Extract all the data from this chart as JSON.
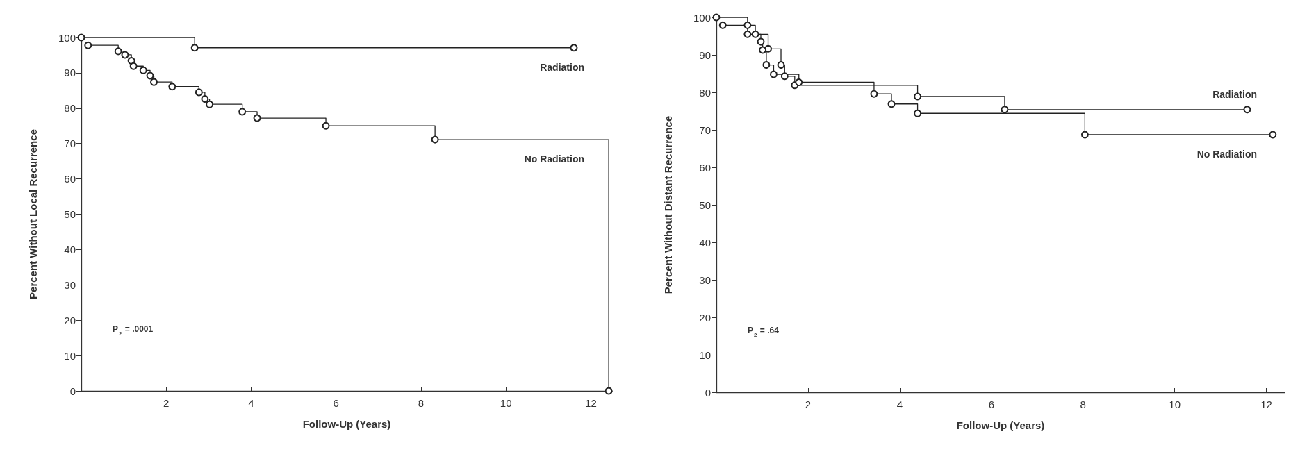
{
  "chart_data": [
    {
      "type": "step",
      "xlabel": "Follow-Up (Years)",
      "ylabel": "Percent Without Local Recurrence",
      "xlim": [
        0,
        12.5
      ],
      "xticks": [
        2,
        4,
        6,
        8,
        10,
        12
      ],
      "ylim": [
        0,
        100
      ],
      "yticks": [
        0,
        10,
        20,
        30,
        40,
        50,
        60,
        70,
        80,
        90,
        100
      ],
      "grid": false,
      "legend": false,
      "marker": "circle",
      "annotations": [
        "P$_{2}$ = .0001"
      ],
      "series": [
        {
          "name": "Radiation",
          "color": "#222222",
          "x": [
            0,
            2.67,
            11.6
          ],
          "values": [
            100,
            97.1,
            97.1
          ]
        },
        {
          "name": "No Radiation",
          "color": "#222222",
          "x": [
            0.16,
            0.87,
            1.03,
            1.18,
            1.23,
            1.46,
            1.62,
            1.71,
            2.14,
            2.77,
            2.91,
            3.02,
            3.79,
            4.14,
            5.76,
            8.33,
            12.42
          ],
          "values": [
            97.8,
            96.1,
            95.1,
            93.4,
            91.9,
            90.7,
            89.2,
            87.4,
            86.1,
            84.5,
            82.6,
            81.1,
            79.0,
            77.2,
            75.0,
            71.1,
            0
          ]
        }
      ]
    },
    {
      "type": "step",
      "xlabel": "Follow-Up (Years)",
      "ylabel": "Percent Without Distant Recurrence",
      "xlim": [
        0,
        12.4
      ],
      "xticks": [
        2,
        4,
        6,
        8,
        10,
        12
      ],
      "ylim": [
        0,
        100
      ],
      "yticks": [
        0,
        10,
        20,
        30,
        40,
        50,
        60,
        70,
        80,
        90,
        100
      ],
      "grid": false,
      "legend": false,
      "marker": "circle",
      "annotations": [
        "P$_{2}$ = .64"
      ],
      "series": [
        {
          "name": "Radiation",
          "color": "#222222",
          "x": [
            0,
            0.68,
            0.85,
            1.13,
            1.41,
            1.49,
            1.71,
            4.39,
            6.29,
            11.58
          ],
          "values": [
            100,
            97.9,
            95.5,
            91.6,
            87.3,
            84.3,
            81.9,
            78.9,
            75.4,
            75.4
          ]
        },
        {
          "name": "No Radiation",
          "color": "#222222",
          "x": [
            0.14,
            0.68,
            0.97,
            1.01,
            1.09,
            1.25,
            1.8,
            3.44,
            3.82,
            4.39,
            8.04,
            12.14
          ],
          "values": [
            97.9,
            95.5,
            93.5,
            91.3,
            87.3,
            84.8,
            82.7,
            79.6,
            76.9,
            74.4,
            68.7,
            68.7
          ]
        }
      ]
    }
  ]
}
